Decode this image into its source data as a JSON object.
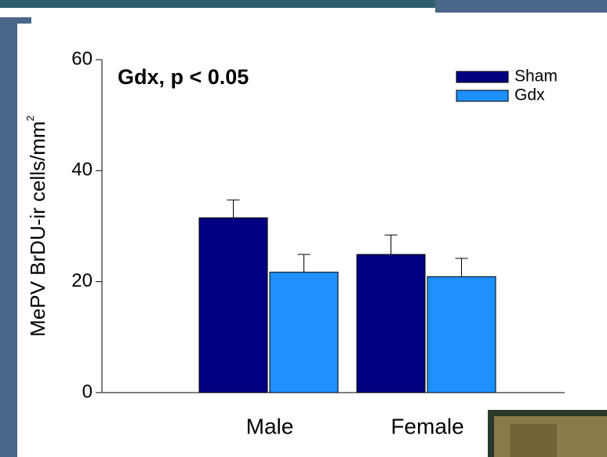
{
  "chart_data": {
    "type": "bar",
    "annotation": "Gdx, p < 0.05",
    "ylabel": "MePV BrDU-ir cells/mm",
    "ylabel_superscript": "2",
    "categories": [
      "Male",
      "Female"
    ],
    "series": [
      {
        "name": "Sham",
        "color": "#000080",
        "values": [
          31.5,
          24.9
        ],
        "errors": [
          3.2,
          3.5
        ]
      },
      {
        "name": "Gdx",
        "color": "#1e90ff",
        "values": [
          21.7,
          20.9
        ],
        "errors": [
          3.2,
          3.3
        ]
      }
    ],
    "ylim": [
      0,
      60
    ],
    "yticks": [
      0,
      20,
      40,
      60
    ],
    "legend": "upper right"
  }
}
